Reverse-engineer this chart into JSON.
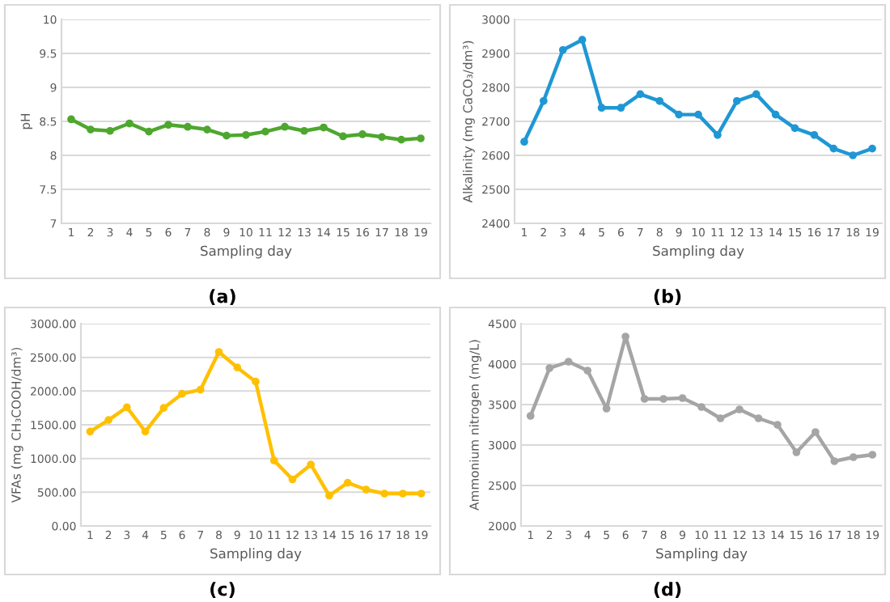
{
  "chart_data": [
    {
      "type": "line",
      "xlabel": "Sampling day",
      "ylabel": "pH",
      "annotations": [
        "(a)"
      ],
      "categories": [
        "1",
        "2",
        "3",
        "4",
        "5",
        "6",
        "7",
        "8",
        "9",
        "10",
        "11",
        "12",
        "13",
        "14",
        "15",
        "16",
        "17",
        "18",
        "19"
      ],
      "series": [
        {
          "color": "#4ea72e",
          "values": [
            8.53,
            8.38,
            8.36,
            8.47,
            8.35,
            8.45,
            8.42,
            8.38,
            8.29,
            8.3,
            8.35,
            8.42,
            8.36,
            8.41,
            8.28,
            8.31,
            8.27,
            8.23,
            8.25
          ]
        }
      ],
      "ylim": [
        7,
        10
      ],
      "yticks": [
        7,
        7.5,
        8,
        8.5,
        9,
        9.5,
        10
      ],
      "grid": "y",
      "marker": "circle",
      "line_style": "solid"
    },
    {
      "type": "line",
      "xlabel": "Sampling day",
      "ylabel": "Alkalinity (mg CaCO₃/dm³)",
      "annotations": [
        "(b)"
      ],
      "categories": [
        "1",
        "2",
        "3",
        "4",
        "5",
        "6",
        "7",
        "8",
        "9",
        "10",
        "11",
        "12",
        "13",
        "14",
        "15",
        "16",
        "17",
        "18",
        "19"
      ],
      "series": [
        {
          "color": "#1f97d4",
          "values": [
            2640,
            2760,
            2910,
            2940,
            2740,
            2740,
            2780,
            2760,
            2720,
            2720,
            2660,
            2760,
            2780,
            2720,
            2680,
            2660,
            2620,
            2600,
            2620
          ]
        }
      ],
      "ylim": [
        2400,
        3000
      ],
      "yticks": [
        2400,
        2500,
        2600,
        2700,
        2800,
        2900,
        3000
      ],
      "grid": "y",
      "marker": "circle",
      "line_style": "solid"
    },
    {
      "type": "line",
      "xlabel": "Sampling day",
      "ylabel": "VFAs (mg CH₃COOH/dm³)",
      "annotations": [
        "(c)"
      ],
      "categories": [
        "1",
        "2",
        "3",
        "4",
        "5",
        "6",
        "7",
        "8",
        "9",
        "10",
        "11",
        "12",
        "13",
        "14",
        "15",
        "16",
        "17",
        "18",
        "19"
      ],
      "series": [
        {
          "color": "#ffc000",
          "values": [
            1400,
            1570,
            1760,
            1400,
            1750,
            1960,
            2020,
            2580,
            2350,
            2140,
            970,
            690,
            910,
            450,
            640,
            540,
            480,
            480,
            480
          ]
        }
      ],
      "ylim": [
        0,
        3000
      ],
      "yticks": [
        {
          "value": 0,
          "label": "0.00"
        },
        {
          "value": 500,
          "label": "500.00"
        },
        {
          "value": 1000,
          "label": "1000.00"
        },
        {
          "value": 1500,
          "label": "1500.00"
        },
        {
          "value": 2000,
          "label": "2000.00"
        },
        {
          "value": 2500,
          "label": "2500.00"
        },
        {
          "value": 3000,
          "label": "3000.00"
        }
      ],
      "grid": "y",
      "marker": "circle",
      "line_style": "solid"
    },
    {
      "type": "line",
      "xlabel": "Sampling day",
      "ylabel": "Ammonium nitrogen (mg/L)",
      "annotations": [
        "(d)"
      ],
      "categories": [
        "1",
        "2",
        "3",
        "4",
        "5",
        "6",
        "7",
        "8",
        "9",
        "10",
        "11",
        "12",
        "13",
        "14",
        "15",
        "16",
        "17",
        "18",
        "19"
      ],
      "series": [
        {
          "color": "#a5a5a5",
          "values": [
            3360,
            3950,
            4030,
            3920,
            3450,
            4340,
            3570,
            3570,
            3580,
            3470,
            3330,
            3440,
            3330,
            3250,
            2910,
            3160,
            2800,
            2850,
            2880
          ]
        }
      ],
      "ylim": [
        2000,
        4500
      ],
      "yticks": [
        2000,
        2500,
        3000,
        3500,
        4000,
        4500
      ],
      "grid": "y",
      "marker": "circle",
      "line_style": "solid"
    }
  ]
}
